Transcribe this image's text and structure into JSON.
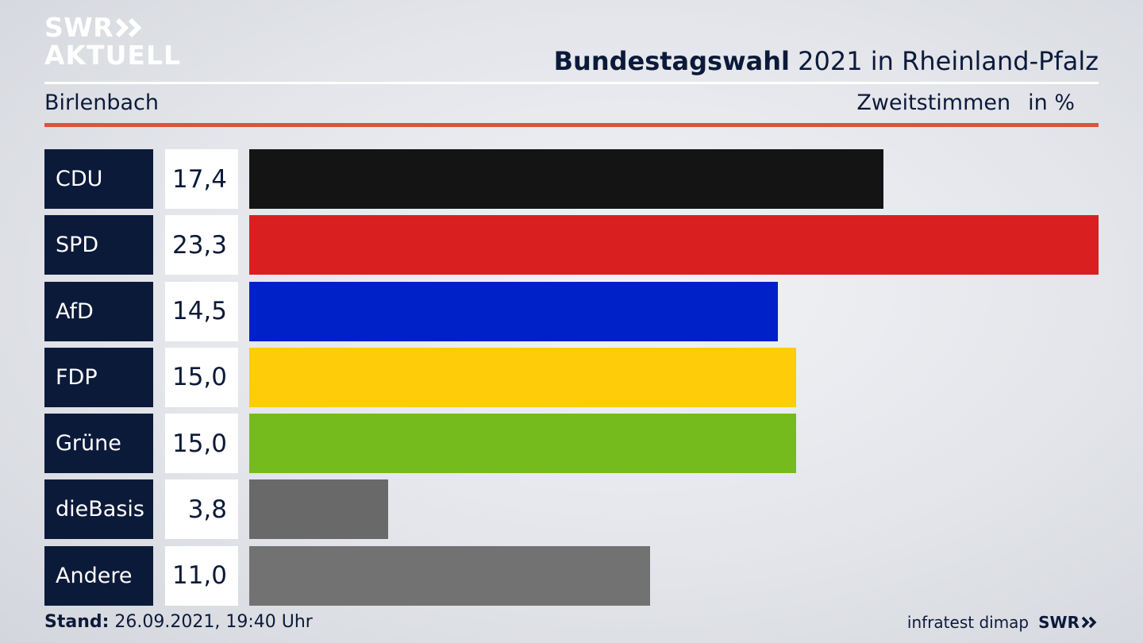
{
  "logo": {
    "line1": "SWR",
    "line2": "AKTUELL"
  },
  "header": {
    "title_bold": "Bundestagswahl",
    "title_rest": " 2021 in Rheinland-Pfalz",
    "location": "Birlenbach",
    "metric": "Zweitstimmen",
    "unit": "in %"
  },
  "footer": {
    "stand_label": "Stand:",
    "stand_value": " 26.09.2021, 19:40 Uhr",
    "source": "infratest dimap",
    "brand": "SWR"
  },
  "chart_data": {
    "type": "bar",
    "orientation": "horizontal",
    "categories": [
      "CDU",
      "SPD",
      "AfD",
      "FDP",
      "Grüne",
      "dieBasis",
      "Andere"
    ],
    "values": [
      17.4,
      23.3,
      14.5,
      15.0,
      15.0,
      3.8,
      11.0
    ],
    "value_labels": [
      "17,4",
      "23,3",
      "14,5",
      "15,0",
      "15,0",
      "3,8",
      "11,0"
    ],
    "colors": [
      "#141414",
      "#d91f20",
      "#0021c8",
      "#ffcc0a",
      "#76bb1e",
      "#696969",
      "#727273"
    ],
    "xlim": [
      0,
      23.3
    ]
  }
}
